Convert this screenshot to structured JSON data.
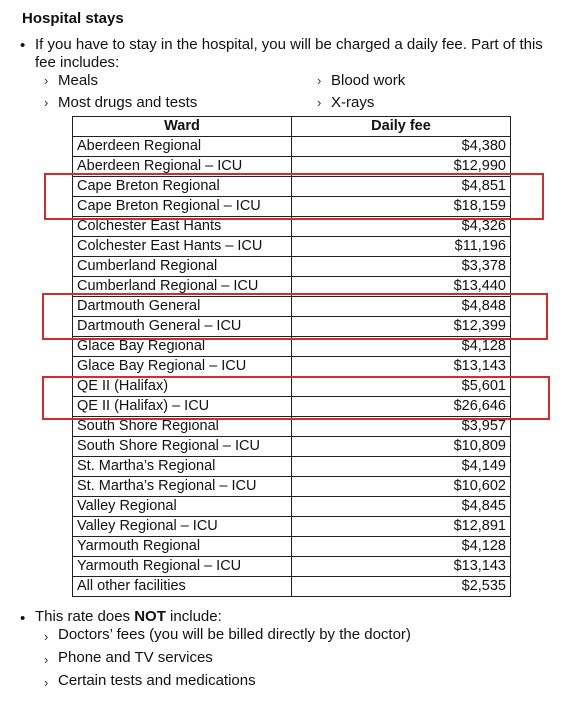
{
  "heading": "Hospital stays",
  "intro_line1": "If you have to stay in the hospital, you will be charged a daily fee. Part of this",
  "intro_line2": "fee includes:",
  "includes": [
    "Meals",
    "Most drugs and tests",
    "Blood work",
    "X-rays"
  ],
  "table": {
    "headers": [
      "Ward",
      "Daily fee"
    ],
    "rows": [
      [
        "Aberdeen Regional",
        "$4,380"
      ],
      [
        "Aberdeen Regional – ICU",
        "$12,990"
      ],
      [
        "Cape Breton Regional",
        "$4,851"
      ],
      [
        "Cape Breton Regional – ICU",
        "$18,159"
      ],
      [
        "Colchester East Hants",
        "$4,326"
      ],
      [
        "Colchester East Hants – ICU",
        "$11,196"
      ],
      [
        "Cumberland Regional",
        "$3,378"
      ],
      [
        "Cumberland Regional – ICU",
        "$13,440"
      ],
      [
        "Dartmouth General",
        "$4,848"
      ],
      [
        "Dartmouth General – ICU",
        "$12,399"
      ],
      [
        "Glace Bay Regional",
        "$4,128"
      ],
      [
        "Glace Bay Regional – ICU",
        "$13,143"
      ],
      [
        "QE II (Halifax)",
        "$5,601"
      ],
      [
        "QE II (Halifax) – ICU",
        "$26,646"
      ],
      [
        "South Shore Regional",
        "$3,957"
      ],
      [
        "South Shore Regional – ICU",
        "$10,809"
      ],
      [
        "St. Martha’s Regional",
        "$4,149"
      ],
      [
        "St. Martha’s Regional – ICU",
        "$10,602"
      ],
      [
        "Valley Regional",
        "$4,845"
      ],
      [
        "Valley Regional – ICU",
        "$12,891"
      ],
      [
        "Yarmouth Regional",
        "$4,128"
      ],
      [
        "Yarmouth Regional – ICU",
        "$13,143"
      ],
      [
        "All other facilities",
        "$2,535"
      ]
    ]
  },
  "exclusions": {
    "prefix": "This rate does ",
    "emphasis": "NOT",
    "suffix": " include:",
    "items": [
      "Doctors’ fees (you will be billed directly by the doctor)",
      "Phone and TV services",
      "Certain tests and medications"
    ]
  },
  "highlight_color": "#d62b2b"
}
